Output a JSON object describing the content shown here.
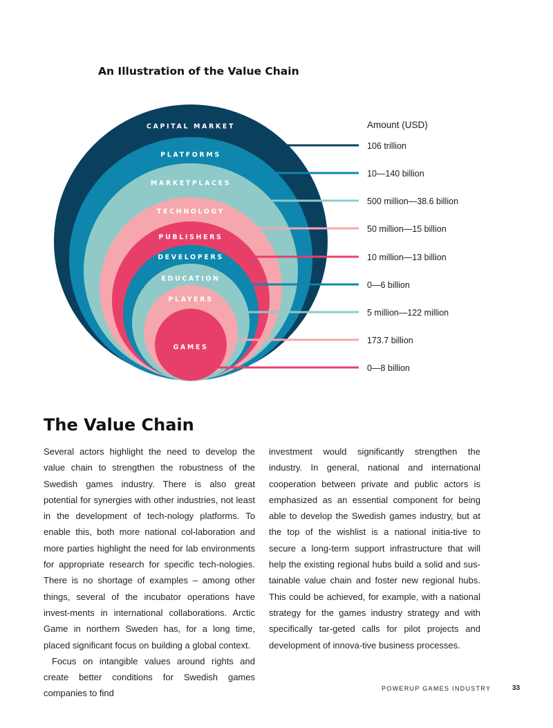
{
  "figure": {
    "title": "An Illustration of the Value Chain",
    "amount_header": "Amount (USD)",
    "rings": [
      {
        "name": "CAPITAL MARKET",
        "amount": "106 trillion",
        "color": "#0b3f5e",
        "label_color": "#ffffff",
        "line_color": "#0b3f5e"
      },
      {
        "name": "PLATFORMS",
        "amount": "10—140 billion",
        "color": "#0e86ad",
        "label_color": "#ffffff",
        "line_color": "#0e86ad"
      },
      {
        "name": "MARKETPLACES",
        "amount": "500 million—38.6 billion",
        "color": "#8fcac8",
        "label_color": "#ffffff",
        "line_color": "#8fcac8"
      },
      {
        "name": "TECHNOLOGY",
        "amount": "50 million—15 billion",
        "color": "#f5a7ad",
        "label_color": "#ffffff",
        "line_color": "#f5a7ad"
      },
      {
        "name": "PUBLISHERS",
        "amount": "10 million—13 billion",
        "color": "#e83f6a",
        "label_color": "#ffffff",
        "line_color": "#e83f6a"
      },
      {
        "name": "DEVELOPERS",
        "amount": "0—6 billion",
        "color": "#0e86ad",
        "label_color": "#ffffff",
        "line_color": "#0e86ad"
      },
      {
        "name": "EDUCATION",
        "amount": "5 million—122 million",
        "color": "#8fcac8",
        "label_color": "#ffffff",
        "line_color": "#8fcac8"
      },
      {
        "name": "PLAYERS",
        "amount": "173.7 billion",
        "color": "#f5a7ad",
        "label_color": "#ffffff",
        "line_color": "#f5a7ad"
      },
      {
        "name": "GAMES",
        "amount": "0—8 billion",
        "color": "#e83f6a",
        "label_color": "#ffffff",
        "line_color": "#e83f6a"
      }
    ]
  },
  "article": {
    "title": "The Value Chain",
    "left_column": [
      "Several actors highlight the need to develop the value chain to strengthen the robustness of the Swedish games industry. There is also great potential for synergies with other industries, not least in the development of tech-nology platforms. To enable this, both more national col-laboration and more parties highlight the need for lab environments for appropriate research for specific tech-nologies. There is no shortage of examples – among other things, several of the incubator operations have invest-ments in international collaborations. Arctic Game in northern Sweden has, for a long time, placed significant focus on building a global context.",
      "Focus on intangible values around rights and create better conditions for Swedish games companies to find"
    ],
    "right_column": [
      "investment would significantly strengthen the industry. In general, national and international cooperation between private and public actors is emphasized as an essential component for being able to develop the Swedish games industry, but at the top of the wishlist is a national initia-tive to secure a long-term support infrastructure that will help the existing regional hubs build a solid and sus-tainable value chain and foster new regional hubs. This could be achieved, for example, with a national strategy for the games industry strategy and with specifically tar-geted calls for pilot projects and development of innova-tive business processes."
    ]
  },
  "footer": {
    "publication": "POWERUP GAMES INDUSTRY",
    "page_number": "33"
  }
}
